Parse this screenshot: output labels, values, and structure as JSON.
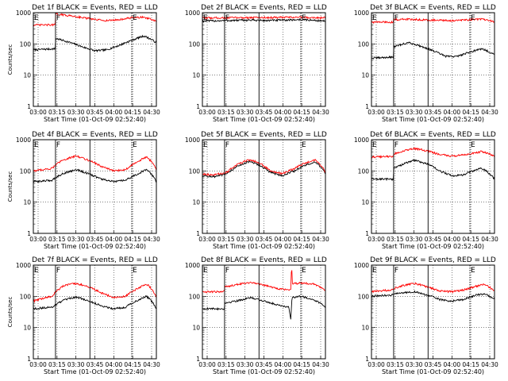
{
  "chart_data": [
    {
      "type": "line",
      "title": "Det 1f BLACK = Events, RED = LLD",
      "xlabel": "Start Time (01-Oct-09 02:52:40)",
      "ylabel": "Counts/sec",
      "yscale": "log",
      "ylim": [
        1,
        1000
      ],
      "xlim": [
        0,
        100
      ],
      "x_tick_labels": [
        "03:00",
        "03:15",
        "03:30",
        "03:45",
        "04:00",
        "04:15",
        "04:30"
      ],
      "y_tick_labels": [
        "1",
        "10",
        "100",
        "1000"
      ],
      "markers": [
        {
          "label": "E",
          "x": 0,
          "line": "solid"
        },
        {
          "label": "F",
          "x": 18,
          "line": "solid"
        },
        {
          "label": "",
          "x": 46,
          "line": "solid"
        },
        {
          "label": "E",
          "x": 80,
          "line": "dotted"
        }
      ],
      "grid": true,
      "series": [
        {
          "color": "#000000",
          "x": [
            0,
            17.9,
            18,
            30,
            40,
            50,
            60,
            70,
            80,
            90,
            100
          ],
          "values": [
            65,
            70,
            150,
            110,
            80,
            60,
            65,
            90,
            130,
            180,
            110
          ]
        },
        {
          "color": "#ff0000",
          "x": [
            0,
            17.9,
            18,
            30,
            40,
            50,
            60,
            70,
            80,
            90,
            100
          ],
          "values": [
            400,
            410,
            900,
            800,
            700,
            600,
            560,
            600,
            690,
            720,
            520
          ]
        }
      ]
    },
    {
      "type": "line",
      "title": "Det 2f BLACK = Events, RED = LLD",
      "xlabel": "Start Time (01-Oct-09 02:52:40)",
      "ylabel": "",
      "yscale": "log",
      "ylim": [
        1,
        1000
      ],
      "xlim": [
        0,
        100
      ],
      "x_tick_labels": [
        "03:00",
        "03:15",
        "03:30",
        "03:45",
        "04:00",
        "04:15",
        "04:30"
      ],
      "y_tick_labels": [
        "1",
        "10",
        "100",
        "1000"
      ],
      "markers": [
        {
          "label": "E",
          "x": 0,
          "line": "solid"
        },
        {
          "label": "F",
          "x": 18,
          "line": "solid"
        },
        {
          "label": "",
          "x": 46,
          "line": "solid"
        },
        {
          "label": "E",
          "x": 80,
          "line": "dotted"
        }
      ],
      "grid": true,
      "series": [
        {
          "color": "#000000",
          "x": [
            0,
            20,
            40,
            50,
            60,
            80,
            100
          ],
          "values": [
            540,
            560,
            580,
            560,
            570,
            600,
            540
          ]
        },
        {
          "color": "#ff0000",
          "x": [
            0,
            20,
            40,
            50,
            60,
            80,
            100
          ],
          "values": [
            680,
            690,
            700,
            700,
            700,
            720,
            680
          ]
        }
      ]
    },
    {
      "type": "line",
      "title": "Det 3f BLACK = Events, RED = LLD",
      "xlabel": "Start Time (01-Oct-09 02:52:40)",
      "ylabel": "",
      "yscale": "log",
      "ylim": [
        1,
        1000
      ],
      "xlim": [
        0,
        100
      ],
      "x_tick_labels": [
        "03:00",
        "03:15",
        "03:30",
        "03:45",
        "04:00",
        "04:15",
        "04:30"
      ],
      "y_tick_labels": [
        "1",
        "10",
        "100",
        "1000"
      ],
      "markers": [
        {
          "label": "E",
          "x": 0,
          "line": "solid"
        },
        {
          "label": "F",
          "x": 18,
          "line": "solid"
        },
        {
          "label": "",
          "x": 46,
          "line": "solid"
        },
        {
          "label": "E",
          "x": 80,
          "line": "dotted"
        }
      ],
      "grid": true,
      "series": [
        {
          "color": "#000000",
          "x": [
            0,
            17.9,
            18,
            30,
            40,
            50,
            60,
            70,
            80,
            90,
            100
          ],
          "values": [
            35,
            38,
            80,
            110,
            85,
            60,
            40,
            40,
            55,
            70,
            45
          ]
        },
        {
          "color": "#ff0000",
          "x": [
            0,
            17.9,
            18,
            30,
            40,
            50,
            60,
            70,
            80,
            90,
            100
          ],
          "values": [
            500,
            500,
            600,
            620,
            600,
            580,
            560,
            560,
            600,
            620,
            510
          ]
        }
      ]
    },
    {
      "type": "line",
      "title": "Det 4f BLACK = Events, RED = LLD",
      "xlabel": "Start Time (01-Oct-09 02:52:40)",
      "ylabel": "Counts/sec",
      "yscale": "log",
      "ylim": [
        1,
        1000
      ],
      "xlim": [
        0,
        100
      ],
      "x_tick_labels": [
        "03:00",
        "03:15",
        "03:30",
        "03:45",
        "04:00",
        "04:15",
        "04:30"
      ],
      "y_tick_labels": [
        "1",
        "10",
        "100",
        "1000"
      ],
      "markers": [
        {
          "label": "E",
          "x": 0,
          "line": "solid"
        },
        {
          "label": "F",
          "x": 18,
          "line": "solid"
        },
        {
          "label": "",
          "x": 46,
          "line": "solid"
        },
        {
          "label": "E",
          "x": 80,
          "line": "dotted"
        }
      ],
      "grid": true,
      "series": [
        {
          "color": "#000000",
          "x": [
            0,
            15,
            25,
            35,
            45,
            55,
            65,
            75,
            85,
            92,
            100
          ],
          "values": [
            45,
            50,
            85,
            110,
            80,
            55,
            45,
            50,
            80,
            110,
            45
          ]
        },
        {
          "color": "#ff0000",
          "x": [
            0,
            15,
            25,
            35,
            45,
            55,
            65,
            75,
            85,
            92,
            100
          ],
          "values": [
            100,
            120,
            230,
            300,
            220,
            140,
            100,
            110,
            200,
            280,
            110
          ]
        }
      ]
    },
    {
      "type": "line",
      "title": "Det 5f BLACK = Events, RED = LLD",
      "xlabel": "Start Time (01-Oct-09 02:52:40)",
      "ylabel": "",
      "yscale": "log",
      "ylim": [
        1,
        1000
      ],
      "xlim": [
        0,
        100
      ],
      "x_tick_labels": [
        "03:00",
        "03:15",
        "03:30",
        "03:45",
        "04:00",
        "04:15",
        "04:30"
      ],
      "y_tick_labels": [
        "1",
        "10",
        "100",
        "1000"
      ],
      "markers": [
        {
          "label": "E",
          "x": 0,
          "line": "solid"
        },
        {
          "label": "F",
          "x": 18,
          "line": "solid"
        },
        {
          "label": "",
          "x": 46,
          "line": "solid"
        },
        {
          "label": "E",
          "x": 80,
          "line": "dotted"
        }
      ],
      "grid": true,
      "series": [
        {
          "color": "#000000",
          "x": [
            0,
            10,
            20,
            30,
            38,
            45,
            55,
            65,
            75,
            85,
            92,
            100
          ],
          "values": [
            70,
            65,
            80,
            150,
            200,
            160,
            90,
            70,
            100,
            160,
            190,
            80
          ]
        },
        {
          "color": "#ff0000",
          "x": [
            0,
            10,
            20,
            30,
            38,
            45,
            55,
            65,
            75,
            85,
            92,
            100
          ],
          "values": [
            80,
            75,
            90,
            170,
            230,
            190,
            100,
            80,
            120,
            190,
            220,
            90
          ]
        }
      ]
    },
    {
      "type": "line",
      "title": "Det 6f BLACK = Events, RED = LLD",
      "xlabel": "Start Time (01-Oct-09 02:52:40)",
      "ylabel": "",
      "yscale": "log",
      "ylim": [
        1,
        1000
      ],
      "xlim": [
        0,
        100
      ],
      "x_tick_labels": [
        "03:00",
        "03:15",
        "03:30",
        "03:45",
        "04:00",
        "04:15",
        "04:30"
      ],
      "y_tick_labels": [
        "1",
        "10",
        "100",
        "1000"
      ],
      "markers": [
        {
          "label": "E",
          "x": 0,
          "line": "solid"
        },
        {
          "label": "F",
          "x": 18,
          "line": "solid"
        },
        {
          "label": "",
          "x": 46,
          "line": "solid"
        },
        {
          "label": "E",
          "x": 80,
          "line": "dotted"
        }
      ],
      "grid": true,
      "series": [
        {
          "color": "#000000",
          "x": [
            0,
            17.9,
            18,
            25,
            35,
            45,
            55,
            65,
            75,
            85,
            90,
            100
          ],
          "values": [
            55,
            55,
            120,
            160,
            220,
            170,
            100,
            70,
            75,
            110,
            120,
            55
          ]
        },
        {
          "color": "#ff0000",
          "x": [
            0,
            17.9,
            18,
            25,
            35,
            45,
            55,
            65,
            75,
            85,
            90,
            100
          ],
          "values": [
            280,
            290,
            350,
            420,
            520,
            440,
            340,
            300,
            320,
            380,
            420,
            300
          ]
        }
      ]
    },
    {
      "type": "line",
      "title": "Det 7f BLACK = Events, RED = LLD",
      "xlabel": "Start Time (01-Oct-09 02:52:40)",
      "ylabel": "Counts/sec",
      "yscale": "log",
      "ylim": [
        1,
        1000
      ],
      "xlim": [
        0,
        100
      ],
      "x_tick_labels": [
        "03:00",
        "03:15",
        "03:30",
        "03:45",
        "04:00",
        "04:15",
        "04:30"
      ],
      "y_tick_labels": [
        "1",
        "10",
        "100",
        "1000"
      ],
      "markers": [
        {
          "label": "E",
          "x": 0,
          "line": "solid"
        },
        {
          "label": "F",
          "x": 18,
          "line": "solid"
        },
        {
          "label": "",
          "x": 46,
          "line": "solid"
        },
        {
          "label": "E",
          "x": 80,
          "line": "dotted"
        }
      ],
      "grid": true,
      "series": [
        {
          "color": "#000000",
          "x": [
            0,
            15,
            25,
            35,
            45,
            55,
            65,
            75,
            85,
            92,
            100
          ],
          "values": [
            40,
            45,
            75,
            95,
            70,
            50,
            40,
            45,
            75,
            100,
            40
          ]
        },
        {
          "color": "#ff0000",
          "x": [
            0,
            15,
            25,
            35,
            45,
            55,
            65,
            75,
            85,
            92,
            100
          ],
          "values": [
            70,
            100,
            220,
            260,
            200,
            130,
            90,
            100,
            180,
            250,
            90
          ]
        }
      ]
    },
    {
      "type": "line",
      "title": "Det 8f BLACK = Events, RED = LLD",
      "xlabel": "Start Time (01-Oct-09 02:52:40)",
      "ylabel": "",
      "yscale": "log",
      "ylim": [
        1,
        1000
      ],
      "xlim": [
        0,
        100
      ],
      "x_tick_labels": [
        "03:00",
        "03:15",
        "03:30",
        "03:45",
        "04:00",
        "04:15",
        "04:30"
      ],
      "y_tick_labels": [
        "1",
        "10",
        "100",
        "1000"
      ],
      "markers": [
        {
          "label": "E",
          "x": 0,
          "line": "solid"
        },
        {
          "label": "F",
          "x": 18,
          "line": "solid"
        },
        {
          "label": "",
          "x": 46,
          "line": "solid"
        },
        {
          "label": "E",
          "x": 80,
          "line": "dotted"
        }
      ],
      "grid": true,
      "series": [
        {
          "color": "#000000",
          "x": [
            0,
            17.9,
            18,
            30,
            40,
            50,
            60,
            70,
            72,
            72.5,
            73,
            80,
            90,
            100
          ],
          "values": [
            40,
            40,
            60,
            75,
            90,
            70,
            55,
            45,
            15,
            60,
            90,
            100,
            80,
            45
          ]
        },
        {
          "color": "#ff0000",
          "x": [
            0,
            17.9,
            18,
            30,
            40,
            50,
            60,
            70,
            72,
            72.5,
            73,
            80,
            90,
            100
          ],
          "values": [
            140,
            140,
            200,
            250,
            280,
            230,
            180,
            160,
            180,
            1000,
            250,
            270,
            250,
            160
          ]
        }
      ]
    },
    {
      "type": "line",
      "title": "Det 9f BLACK = Events, RED = LLD",
      "xlabel": "Start Time (01-Oct-09 02:52:40)",
      "ylabel": "",
      "yscale": "log",
      "ylim": [
        1,
        1000
      ],
      "xlim": [
        0,
        100
      ],
      "x_tick_labels": [
        "03:00",
        "03:15",
        "03:30",
        "03:45",
        "04:00",
        "04:15",
        "04:30"
      ],
      "y_tick_labels": [
        "1",
        "10",
        "100",
        "1000"
      ],
      "markers": [
        {
          "label": "E",
          "x": 0,
          "line": "solid"
        },
        {
          "label": "F",
          "x": 18,
          "line": "solid"
        },
        {
          "label": "",
          "x": 46,
          "line": "solid"
        },
        {
          "label": "E",
          "x": 80,
          "line": "dotted"
        }
      ],
      "grid": true,
      "series": [
        {
          "color": "#000000",
          "x": [
            0,
            15,
            25,
            35,
            45,
            55,
            65,
            75,
            85,
            92,
            100
          ],
          "values": [
            100,
            110,
            130,
            140,
            110,
            80,
            70,
            80,
            110,
            120,
            80
          ]
        },
        {
          "color": "#ff0000",
          "x": [
            0,
            15,
            25,
            35,
            45,
            55,
            65,
            75,
            85,
            92,
            100
          ],
          "values": [
            140,
            160,
            220,
            260,
            200,
            150,
            140,
            160,
            210,
            240,
            150
          ]
        }
      ]
    }
  ]
}
